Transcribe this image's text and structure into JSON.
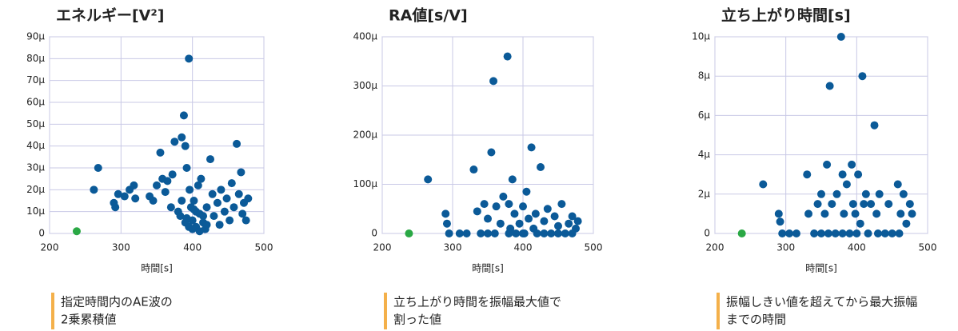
{
  "chart_data": [
    {
      "type": "scatter",
      "title": "エネルギー[V²]",
      "xlabel": "時間[s]",
      "annotations": [
        "指定時間内のAE波の",
        "2乗累積値"
      ],
      "xlim": [
        200,
        500
      ],
      "xticks": [
        200,
        300,
        400,
        500
      ],
      "ylim": [
        0,
        90
      ],
      "yticks": [
        0,
        {
          "value": 10,
          "label": "10μ"
        },
        {
          "value": 20,
          "label": "20μ"
        },
        {
          "value": 30,
          "label": "30μ"
        },
        {
          "value": 40,
          "label": "40μ"
        },
        {
          "value": 50,
          "label": "50μ"
        },
        {
          "value": 60,
          "label": "60μ"
        },
        {
          "value": 70,
          "label": "70μ"
        },
        {
          "value": 80,
          "label": "80μ"
        },
        {
          "value": 90,
          "label": "90μ"
        }
      ],
      "grid": true,
      "series": [
        {
          "color": "#0b5a98",
          "x": [
            262,
            268,
            290,
            292,
            296,
            305,
            312,
            318,
            320,
            340,
            345,
            350,
            355,
            358,
            362,
            365,
            370,
            372,
            375,
            380,
            383,
            385,
            388,
            390,
            392,
            395,
            396,
            398,
            400,
            402,
            405,
            408,
            410,
            412,
            415,
            418,
            420,
            425,
            428,
            430,
            435,
            438,
            440,
            445,
            448,
            452,
            455,
            458,
            462,
            465,
            468,
            470,
            472,
            475,
            478,
            390,
            395,
            400,
            405,
            410,
            415,
            420,
            385,
            392,
            402
          ],
          "values": [
            20,
            30,
            14,
            12,
            18,
            17,
            20,
            22,
            16,
            17,
            15,
            22,
            37,
            25,
            19,
            24,
            12,
            27,
            42,
            10,
            8,
            44,
            54,
            40,
            30,
            80,
            20,
            12,
            6,
            15,
            3,
            22,
            9,
            25,
            5,
            2,
            12,
            34,
            18,
            8,
            14,
            4,
            20,
            10,
            16,
            6,
            23,
            12,
            41,
            18,
            28,
            9,
            14,
            6,
            16,
            5,
            3,
            2,
            10,
            1,
            8,
            4,
            15,
            7,
            11
          ]
        },
        {
          "color": "#2aa845",
          "x": [
            238
          ],
          "values": [
            1
          ]
        }
      ]
    },
    {
      "type": "scatter",
      "title": "RA値[s/V]",
      "xlabel": "時間[s]",
      "annotations": [
        "立ち上がり時間を振幅最大値で",
        "割った値"
      ],
      "xlim": [
        200,
        500
      ],
      "xticks": [
        200,
        300,
        400,
        500
      ],
      "ylim": [
        0,
        400
      ],
      "yticks": [
        0,
        {
          "value": 100,
          "label": "100μ"
        },
        {
          "value": 200,
          "label": "200μ"
        },
        {
          "value": 300,
          "label": "300μ"
        },
        {
          "value": 400,
          "label": "400μ"
        }
      ],
      "grid": true,
      "series": [
        {
          "color": "#0b5a98",
          "x": [
            265,
            290,
            292,
            295,
            310,
            320,
            330,
            335,
            340,
            345,
            350,
            355,
            358,
            362,
            368,
            372,
            378,
            380,
            382,
            385,
            388,
            390,
            395,
            400,
            402,
            405,
            408,
            412,
            415,
            418,
            420,
            425,
            430,
            435,
            440,
            445,
            450,
            455,
            460,
            465,
            470,
            475,
            478,
            400,
            430,
            450,
            470,
            380,
            360,
            350
          ],
          "values": [
            110,
            40,
            20,
            0,
            0,
            0,
            130,
            45,
            0,
            60,
            30,
            165,
            310,
            55,
            20,
            75,
            360,
            60,
            10,
            110,
            40,
            0,
            20,
            55,
            0,
            85,
            30,
            175,
            10,
            40,
            0,
            135,
            25,
            50,
            0,
            35,
            15,
            60,
            0,
            20,
            35,
            10,
            25,
            0,
            0,
            0,
            0,
            0,
            0,
            0
          ]
        },
        {
          "color": "#2aa845",
          "x": [
            238
          ],
          "values": [
            0
          ]
        }
      ]
    },
    {
      "type": "scatter",
      "title": "立ち上がり時間[s]",
      "xlabel": "時間[s]",
      "annotations": [
        "振幅しきい値を超えてから最大振幅",
        "までの時間"
      ],
      "xlim": [
        200,
        500
      ],
      "xticks": [
        200,
        300,
        400,
        500
      ],
      "ylim": [
        0,
        10
      ],
      "yticks": [
        0,
        {
          "value": 2,
          "label": "2μ"
        },
        {
          "value": 4,
          "label": "4μ"
        },
        {
          "value": 6,
          "label": "6μ"
        },
        {
          "value": 8,
          "label": "8μ"
        },
        {
          "value": 10,
          "label": "10μ"
        }
      ],
      "grid": true,
      "series": [
        {
          "color": "#0b5a98",
          "x": [
            268,
            290,
            292,
            295,
            305,
            315,
            330,
            332,
            340,
            345,
            350,
            355,
            358,
            362,
            365,
            370,
            372,
            378,
            380,
            382,
            386,
            390,
            393,
            395,
            398,
            402,
            405,
            408,
            410,
            413,
            416,
            420,
            425,
            428,
            432,
            440,
            445,
            450,
            458,
            462,
            466,
            470,
            475,
            478,
            400,
            430,
            460,
            380,
            360,
            350
          ],
          "values": [
            2.5,
            1,
            0.6,
            0,
            0,
            0,
            3,
            1,
            0,
            1.5,
            2,
            1,
            3.5,
            7.5,
            1.5,
            0,
            2,
            10,
            3,
            1,
            2.5,
            0,
            3.5,
            1.5,
            1,
            3,
            0.5,
            8,
            1.5,
            2,
            0,
            1.5,
            5.5,
            1,
            2,
            0,
            1.5,
            0,
            2.5,
            1,
            2,
            0.5,
            1.5,
            1,
            0,
            0,
            0,
            0,
            0,
            0
          ]
        },
        {
          "color": "#2aa845",
          "x": [
            238
          ],
          "values": [
            0
          ]
        }
      ]
    }
  ]
}
